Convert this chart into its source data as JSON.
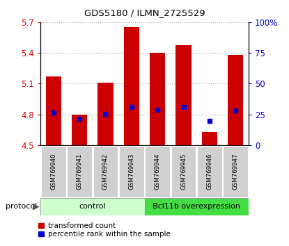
{
  "title": "GDS5180 / ILMN_2725529",
  "samples": [
    "GSM769940",
    "GSM769941",
    "GSM769942",
    "GSM769943",
    "GSM769944",
    "GSM769945",
    "GSM769946",
    "GSM769947"
  ],
  "red_top": [
    5.17,
    4.795,
    5.11,
    5.65,
    5.4,
    5.475,
    4.63,
    5.38
  ],
  "blue_y": [
    4.82,
    4.755,
    4.805,
    4.875,
    4.845,
    4.875,
    4.735,
    4.835
  ],
  "ymin": 4.5,
  "ymax": 5.7,
  "yticks": [
    4.5,
    4.8,
    5.1,
    5.4,
    5.7
  ],
  "right_yticks": [
    0,
    25,
    50,
    75,
    100
  ],
  "right_ylabels": [
    "0",
    "25",
    "50",
    "75",
    "100%"
  ],
  "bar_width": 0.6,
  "red_color": "#cc0000",
  "blue_color": "#0000cc",
  "control_color": "#ccffcc",
  "overexp_color": "#44dd44",
  "protocol_label": "protocol",
  "group_labels": [
    "control",
    "Bcl11b overexpression"
  ],
  "legend1": "transformed count",
  "legend2": "percentile rank within the sample",
  "tick_label_color": "#cc0000",
  "right_tick_color": "#0000cc",
  "grid_color": "#aaaaaa",
  "label_bg": "#d0d0d0",
  "figsize": [
    4.15,
    3.54
  ],
  "dpi": 100
}
